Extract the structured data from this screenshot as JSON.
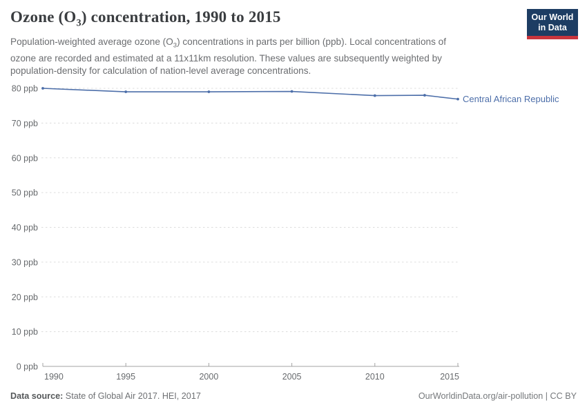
{
  "header": {
    "title": {
      "pre": "Ozone (O",
      "sub": "3",
      "post": ") concentration, 1990 to 2015"
    },
    "subtitle": {
      "line1_pre": "Population-weighted average ozone (O",
      "line1_sub": "3",
      "line1_post": ") concentrations in parts per billion (ppb). Local concentrations of",
      "line2": "ozone are recorded and estimated at a 11x11km resolution. These values are subsequently weighted by",
      "line3": "population-density for calculation of nation-level average concentrations."
    },
    "logo": {
      "line1": "Our World",
      "line2": "in Data",
      "bg_color": "#1d3d63",
      "accent_color": "#c9353d",
      "text_color": "#ffffff"
    }
  },
  "chart_data": {
    "type": "line",
    "title": "Ozone (O3) concentration, 1990 to 2015",
    "unit": "ppb",
    "x": [
      1990,
      1995,
      2000,
      2005,
      2010,
      2013,
      2015
    ],
    "series": [
      {
        "name": "Central African Republic",
        "color": "#4c6ea9",
        "values": [
          80.0,
          79.0,
          79.0,
          79.1,
          77.9,
          78.0,
          76.9
        ]
      }
    ],
    "xlim": [
      1990,
      2015
    ],
    "ylim": [
      0,
      80
    ],
    "x_ticks": [
      {
        "value": 1990,
        "label": "1990"
      },
      {
        "value": 1995,
        "label": "1995"
      },
      {
        "value": 2000,
        "label": "2000"
      },
      {
        "value": 2005,
        "label": "2005"
      },
      {
        "value": 2010,
        "label": "2010"
      },
      {
        "value": 2015,
        "label": "2015"
      }
    ],
    "y_ticks": [
      {
        "value": 0,
        "label": "0 ppb"
      },
      {
        "value": 10,
        "label": "10 ppb"
      },
      {
        "value": 20,
        "label": "20 ppb"
      },
      {
        "value": 30,
        "label": "30 ppb"
      },
      {
        "value": 40,
        "label": "40 ppb"
      },
      {
        "value": 50,
        "label": "50 ppb"
      },
      {
        "value": 60,
        "label": "60 ppb"
      },
      {
        "value": 70,
        "label": "70 ppb"
      },
      {
        "value": 80,
        "label": "80 ppb"
      }
    ],
    "grid": "horizontal-dashed",
    "legend_position": "end-of-line"
  },
  "footer": {
    "datasource_label": "Data source:",
    "datasource_text": " State of Global Air 2017. HEI, 2017",
    "link": "OurWorldinData.org/air-pollution | CC BY"
  }
}
